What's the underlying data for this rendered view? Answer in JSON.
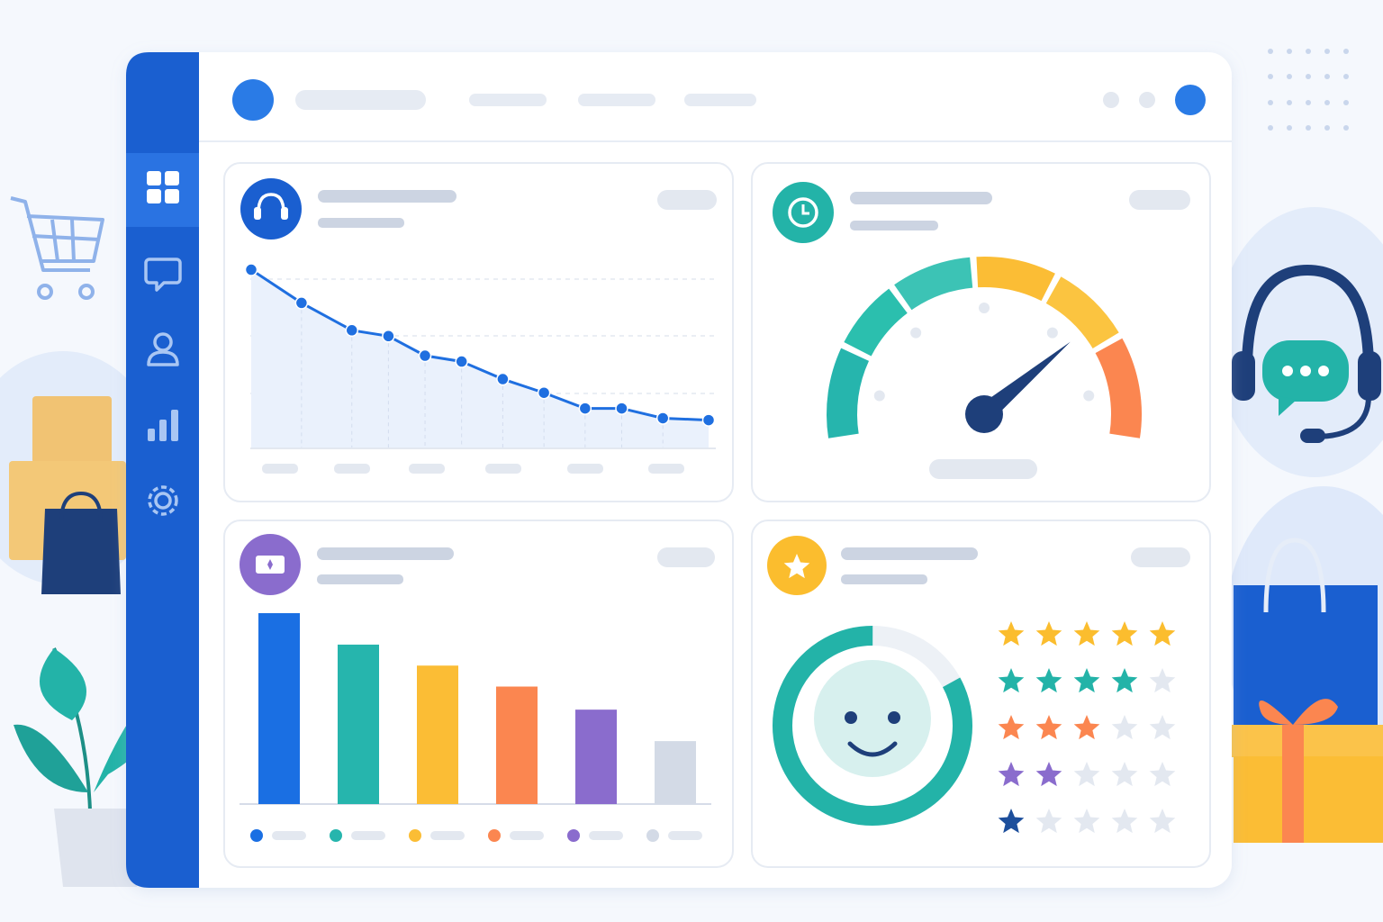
{
  "line_chart": {
    "type": "line",
    "color": "#1f6fe0",
    "x": [
      0,
      11,
      22,
      30,
      38,
      46,
      55,
      64,
      73,
      81,
      90,
      100
    ],
    "values": [
      91,
      74,
      60,
      57,
      47,
      44,
      35,
      28,
      20,
      20,
      15,
      14
    ],
    "xlim": [
      0,
      100
    ],
    "ylim": [
      0,
      100
    ]
  },
  "gauge": {
    "type": "gauge",
    "value": 75,
    "ylim": [
      0,
      100
    ]
  },
  "bar_chart": {
    "type": "bar",
    "values": [
      91,
      76,
      66,
      56,
      45,
      30
    ],
    "colors": [
      "#1a6fe3",
      "#26b5ad",
      "#fbbd35",
      "#fb8650",
      "#8a6ccd",
      "#d3dae6"
    ],
    "ylim": [
      0,
      100
    ]
  },
  "satisfaction_ring": {
    "type": "ring",
    "value": 83,
    "color": "#23b3a8"
  },
  "star_ratings": {
    "type": "stars",
    "values": [
      5,
      4,
      3,
      2,
      1
    ],
    "colors": [
      "#fbbd2e",
      "#23b3a8",
      "#fb8650",
      "#8a6ccd",
      "#1d4f9c"
    ],
    "max": 5
  }
}
